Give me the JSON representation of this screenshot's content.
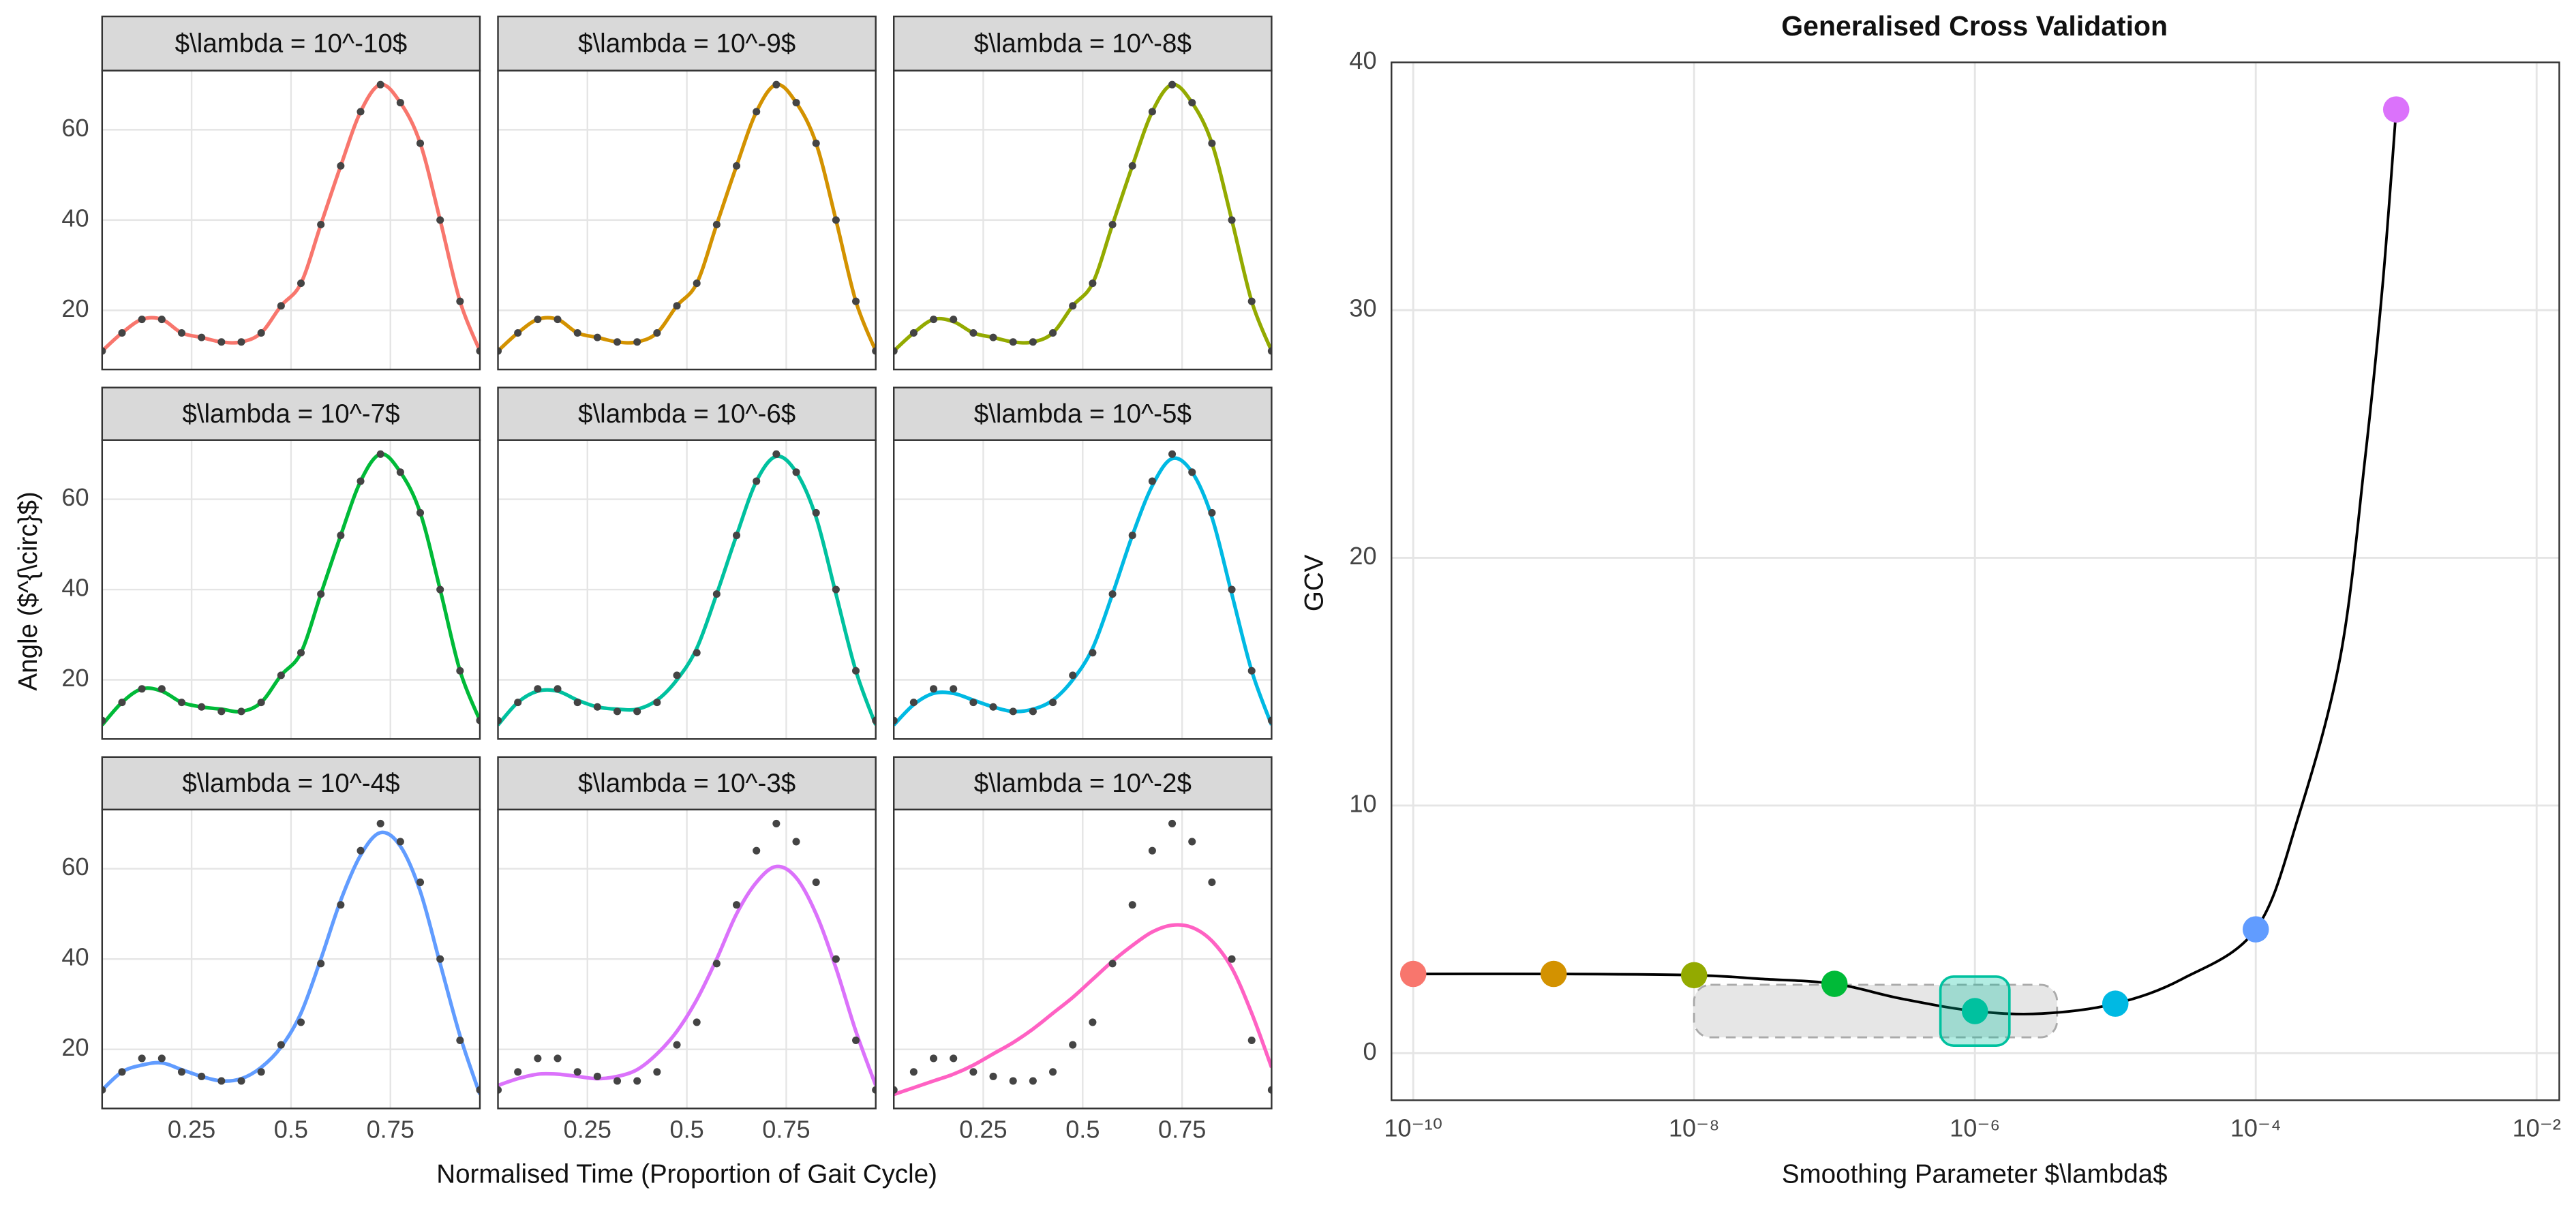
{
  "chart_data": [
    {
      "type": "facet",
      "x_label": "Normalised Time (Proportion of Gait Cycle)",
      "y_label": "Angle ($^{\\circ}$)",
      "x": [
        0.025,
        0.075,
        0.125,
        0.175,
        0.225,
        0.275,
        0.325,
        0.375,
        0.425,
        0.475,
        0.525,
        0.575,
        0.625,
        0.675,
        0.725,
        0.775,
        0.825,
        0.875,
        0.925,
        0.975
      ],
      "observed": {
        "color": "#444444",
        "values": [
          11,
          15,
          18,
          18,
          15,
          14,
          13,
          13,
          15,
          21,
          26,
          39,
          52,
          64,
          70,
          66,
          57,
          40,
          22,
          11
        ]
      },
      "xlim": [
        0.025,
        0.975
      ],
      "xticks": [
        0.25,
        0.5,
        0.75
      ],
      "ylim": [
        6.9,
        73.1
      ],
      "yticks": [
        20,
        40,
        60
      ],
      "grid": true,
      "panels": [
        {
          "title": "$\\lambda = 10^-10$",
          "color": "#F8766D",
          "values": [
            11,
            15,
            18,
            18,
            15,
            14,
            13,
            13,
            15,
            21,
            26,
            39,
            52,
            64,
            70,
            66,
            57,
            40,
            22,
            11
          ]
        },
        {
          "title": "$\\lambda = 10^-9$",
          "color": "#D39200",
          "values": [
            11,
            15,
            18,
            18,
            15,
            14,
            13,
            13,
            15,
            21,
            26,
            39,
            52,
            64,
            70,
            66,
            57,
            40,
            22,
            11
          ]
        },
        {
          "title": "$\\lambda = 10^-8$",
          "color": "#93AA00",
          "values": [
            11,
            15,
            18,
            17.5,
            15,
            14,
            13,
            13,
            15,
            21,
            26,
            39,
            52,
            64,
            70,
            66,
            57,
            40,
            22,
            11
          ]
        },
        {
          "title": "$\\lambda = 10^-7$",
          "color": "#00BA38",
          "values": [
            10,
            15,
            18,
            17.5,
            15,
            14,
            13.5,
            13,
            15,
            21,
            26,
            39,
            52,
            64,
            70,
            66,
            57,
            40,
            22,
            11
          ]
        },
        {
          "title": "$\\lambda = 10^-6$",
          "color": "#00C19F",
          "values": [
            10,
            15,
            17.5,
            17.5,
            15.5,
            14,
            13.5,
            13.5,
            15.5,
            20,
            27,
            39,
            52,
            64,
            69.5,
            66,
            56,
            39,
            22,
            10
          ]
        },
        {
          "title": "$\\lambda = 10^-5$",
          "color": "#00B9E3",
          "values": [
            10,
            14.5,
            17,
            17,
            15.5,
            14,
            13,
            13.5,
            15.5,
            20,
            27,
            39,
            52,
            63,
            69,
            66,
            56,
            39,
            22,
            10
          ]
        },
        {
          "title": "$\\lambda = 10^-4$",
          "color": "#619CFF",
          "values": [
            11,
            15,
            16.5,
            17,
            15.5,
            14,
            13,
            13.5,
            16,
            20.5,
            28,
            40,
            53,
            63,
            68,
            65,
            55,
            39,
            23,
            10
          ]
        },
        {
          "title": "$\\lambda = 10^-3$",
          "color": "#DB72FB",
          "values": [
            12,
            13.5,
            14.5,
            14.5,
            14,
            13.5,
            14,
            15.5,
            19,
            24,
            31,
            40,
            50,
            57,
            60.5,
            58,
            50,
            38,
            24,
            12
          ]
        },
        {
          "title": "$\\lambda = 10^-2$",
          "color": "#FF61C3",
          "values": [
            10,
            11.5,
            13,
            14.5,
            16.5,
            19,
            21.5,
            24.5,
            28,
            31.5,
            35.5,
            39.5,
            43,
            46,
            47.5,
            47,
            44,
            38,
            28,
            16
          ]
        }
      ]
    },
    {
      "type": "line",
      "title": "Generalised Cross Validation",
      "x_label": "Smoothing Parameter $\\lambda$",
      "y_label": "GCV",
      "log_x": true,
      "grid": true,
      "x": [
        1e-10,
        1e-09,
        1e-08,
        1e-07,
        1e-06,
        1e-05,
        0.0001,
        0.001
      ],
      "values": [
        3.2,
        3.2,
        3.15,
        2.8,
        1.7,
        2.0,
        5.0,
        38.1
      ],
      "colors": [
        "#F8766D",
        "#D39200",
        "#93AA00",
        "#00BA38",
        "#00C19F",
        "#00B9E3",
        "#619CFF",
        "#DB72FB"
      ],
      "curve": {
        "color": "#000000",
        "x": [
          1e-10,
          1e-09,
          1e-08,
          3e-08,
          1e-07,
          3e-07,
          1e-06,
          3e-06,
          1e-05,
          3e-05,
          0.0001,
          0.0002,
          0.0004,
          0.0006,
          0.0008,
          0.001
        ],
        "values": [
          3.2,
          3.2,
          3.15,
          3.0,
          2.8,
          2.2,
          1.7,
          1.6,
          2.0,
          3.0,
          5.0,
          9.5,
          16,
          24,
          31,
          38.1
        ]
      },
      "xlim": [
        7e-11,
        0.0145
      ],
      "xticks": [
        {
          "value": 1e-10,
          "label": "10⁻¹⁰"
        },
        {
          "value": 1e-08,
          "label": "10⁻⁸"
        },
        {
          "value": 1e-06,
          "label": "10⁻⁶"
        },
        {
          "value": 0.0001,
          "label": "10⁻⁴"
        },
        {
          "value": 0.01,
          "label": "10⁻²"
        }
      ],
      "ylim": [
        -1.9,
        40
      ],
      "yticks": [
        0,
        10,
        20,
        30,
        40
      ]
    }
  ]
}
